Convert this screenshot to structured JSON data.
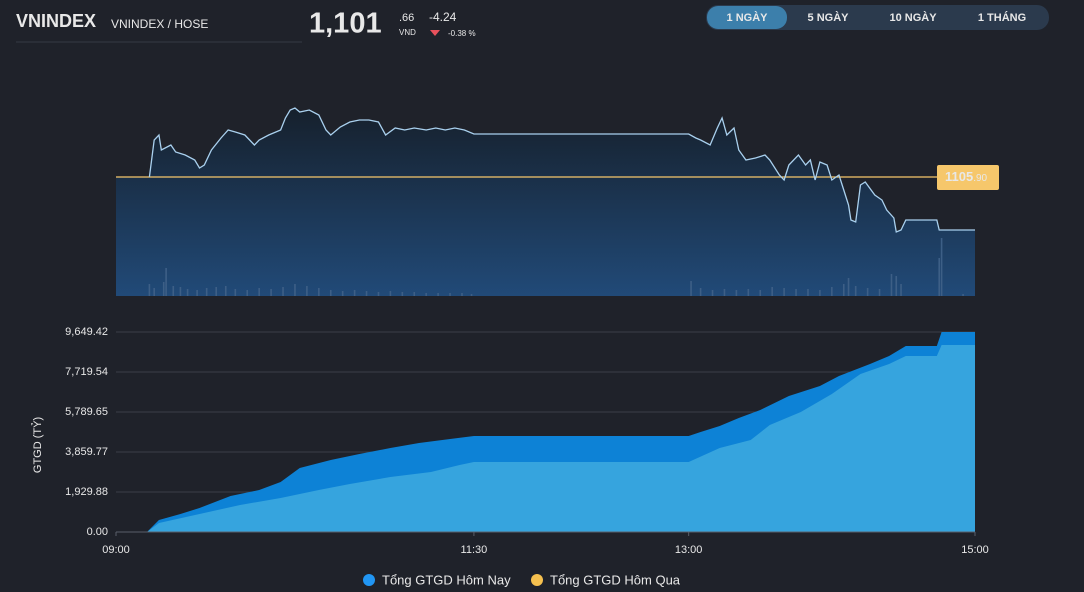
{
  "header": {
    "symbol": "VNINDEX",
    "exchange": "VNINDEX / HOSE",
    "price_int": "1,101",
    "price_dec": ".66",
    "currency": "VND",
    "change": "-4.24",
    "change_pct": "-0.38 %"
  },
  "tabs": {
    "items": [
      "1 NGÀY",
      "5 NGÀY",
      "10 NGÀY",
      "1 THÁNG"
    ],
    "active": 0
  },
  "chart_data": [
    {
      "type": "line",
      "xlim": [
        "09:00",
        "15:00"
      ],
      "ylim": [
        1096.38,
        1113.66
      ],
      "reference": {
        "value": 1105.9,
        "label_int": "1105",
        "label_dec": ".90",
        "color": "#f6c76b"
      },
      "series": [
        {
          "color": "#a9d0ee",
          "x": [
            "09:14",
            "09:16",
            "09:18",
            "09:19",
            "09:23",
            "09:25",
            "09:29",
            "09:33",
            "09:35",
            "09:37",
            "09:40",
            "09:44",
            "09:47",
            "09:50",
            "09:54",
            "09:58",
            "10:00",
            "10:04",
            "10:09",
            "10:11",
            "10:13",
            "10:15",
            "10:17",
            "10:21",
            "10:25",
            "10:28",
            "10:30",
            "10:34",
            "10:38",
            "10:42",
            "10:46",
            "10:50",
            "10:53",
            "10:57",
            "11:01",
            "11:05",
            "11:10",
            "11:14",
            "11:18",
            "11:22",
            "11:26",
            "11:30",
            "13:00",
            "13:03",
            "13:05",
            "13:09",
            "13:12",
            "13:14",
            "13:16",
            "13:19",
            "13:21",
            "13:24",
            "13:28",
            "13:32",
            "13:34",
            "13:38",
            "13:40",
            "13:42",
            "13:46",
            "13:49",
            "13:51",
            "13:53",
            "13:55",
            "13:58",
            "14:00",
            "14:03",
            "14:05",
            "14:07",
            "14:08",
            "14:10",
            "14:12",
            "14:14",
            "14:18",
            "14:21",
            "14:23",
            "14:26",
            "14:27",
            "14:29",
            "14:31",
            "14:44",
            "14:45",
            "15:00"
          ],
          "values": [
            1105.9,
            1108.86,
            1109.26,
            1108.06,
            1108.46,
            1107.9,
            1107.66,
            1107.26,
            1106.62,
            1106.86,
            1108.06,
            1109.02,
            1109.66,
            1109.5,
            1109.26,
            1108.46,
            1108.86,
            1109.26,
            1109.66,
            1110.62,
            1111.26,
            1111.42,
            1111.1,
            1111.26,
            1110.86,
            1109.66,
            1109.26,
            1109.9,
            1110.3,
            1110.46,
            1110.46,
            1110.3,
            1109.26,
            1109.82,
            1109.66,
            1109.82,
            1109.66,
            1109.82,
            1109.66,
            1109.82,
            1109.66,
            1109.34,
            1109.34,
            1109.02,
            1108.86,
            1108.46,
            1109.82,
            1110.62,
            1109.26,
            1109.82,
            1108.06,
            1107.26,
            1107.42,
            1107.66,
            1107.26,
            1106.06,
            1105.66,
            1106.86,
            1107.66,
            1106.86,
            1107.26,
            1105.66,
            1107.1,
            1106.86,
            1105.66,
            1106.06,
            1104.86,
            1103.66,
            1102.46,
            1102.3,
            1105.26,
            1105.5,
            1104.46,
            1104.06,
            1103.26,
            1102.62,
            1101.5,
            1101.66,
            1102.46,
            1102.46,
            1101.66,
            1101.66
          ]
        }
      ],
      "volume": {
        "color": "#3d5f86",
        "vlim": [
          0,
          60
        ],
        "x": [
          "09:14",
          "09:16",
          "09:20",
          "09:21",
          "09:24",
          "09:27",
          "09:30",
          "09:34",
          "09:38",
          "09:42",
          "09:46",
          "09:50",
          "09:55",
          "10:00",
          "10:05",
          "10:10",
          "10:15",
          "10:20",
          "10:25",
          "10:30",
          "10:35",
          "10:40",
          "10:45",
          "10:50",
          "10:55",
          "11:00",
          "11:05",
          "11:10",
          "11:15",
          "11:20",
          "11:25",
          "11:29",
          "13:01",
          "13:05",
          "13:10",
          "13:15",
          "13:20",
          "13:25",
          "13:30",
          "13:35",
          "13:40",
          "13:45",
          "13:50",
          "13:55",
          "14:00",
          "14:05",
          "14:07",
          "14:10",
          "14:15",
          "14:20",
          "14:25",
          "14:27",
          "14:29",
          "14:45",
          "14:46",
          "14:55"
        ],
        "values": [
          12,
          8,
          14,
          28,
          10,
          9,
          7,
          6,
          8,
          9,
          10,
          7,
          6,
          8,
          7,
          9,
          12,
          10,
          8,
          6,
          5,
          6,
          5,
          4,
          5,
          4,
          4,
          3,
          3,
          3,
          3,
          2,
          15,
          8,
          6,
          7,
          6,
          7,
          6,
          9,
          8,
          7,
          7,
          6,
          9,
          12,
          18,
          10,
          8,
          7,
          22,
          20,
          12,
          38,
          58,
          2
        ]
      }
    },
    {
      "type": "area",
      "y_label": "GTGD (TỶ)",
      "xlim": [
        "09:00",
        "15:00"
      ],
      "xticks": [
        "09:00",
        "11:30",
        "13:00",
        "15:00"
      ],
      "ylim": [
        0,
        9649.42
      ],
      "yticks": [
        {
          "value": 0,
          "label": "0.00"
        },
        {
          "value": 1929.88,
          "label": "1,929.88"
        },
        {
          "value": 3859.77,
          "label": "3,859.77"
        },
        {
          "value": 5789.65,
          "label": "5,789.65"
        },
        {
          "value": 7719.54,
          "label": "7,719.54"
        },
        {
          "value": 9649.42,
          "label": "9,649.42"
        }
      ],
      "grid": true,
      "series": [
        {
          "name": "Tổng GTGD Hôm Nay",
          "color": "#0d82d6",
          "legend_color": "#2196f3",
          "x": [
            "09:00",
            "09:13",
            "09:18",
            "09:27",
            "09:35",
            "09:48",
            "10:00",
            "10:09",
            "10:17",
            "10:30",
            "10:42",
            "10:55",
            "11:07",
            "11:20",
            "11:30",
            "13:00",
            "13:05",
            "13:13",
            "13:21",
            "13:30",
            "13:42",
            "13:55",
            "14:03",
            "14:16",
            "14:24",
            "14:31",
            "14:44",
            "14:46",
            "15:00"
          ],
          "values": [
            0,
            0,
            579,
            868,
            1158,
            1737,
            2026,
            2412,
            3088,
            3474,
            3763,
            4053,
            4294,
            4487,
            4632,
            4632,
            4825,
            5114,
            5500,
            5886,
            6562,
            7044,
            7527,
            8106,
            8491,
            8974,
            8974,
            9649.42,
            9649.42
          ]
        },
        {
          "name": "Tổng GTGD Hôm Qua",
          "color": "#36a4de",
          "legend_color": "#f5c04f",
          "x": [
            "09:00",
            "09:13",
            "09:18",
            "09:35",
            "09:52",
            "10:09",
            "10:25",
            "10:38",
            "10:55",
            "11:12",
            "11:24",
            "11:30",
            "13:00",
            "13:13",
            "13:26",
            "13:34",
            "13:47",
            "14:00",
            "14:12",
            "14:24",
            "14:31",
            "14:44",
            "14:46",
            "15:00"
          ],
          "values": [
            0,
            0,
            434,
            868,
            1303,
            1640,
            2026,
            2316,
            2654,
            2895,
            3233,
            3377,
            3377,
            4053,
            4439,
            5162,
            5790,
            6658,
            7623,
            8106,
            8491,
            8491,
            9022,
            9022
          ]
        }
      ]
    }
  ]
}
